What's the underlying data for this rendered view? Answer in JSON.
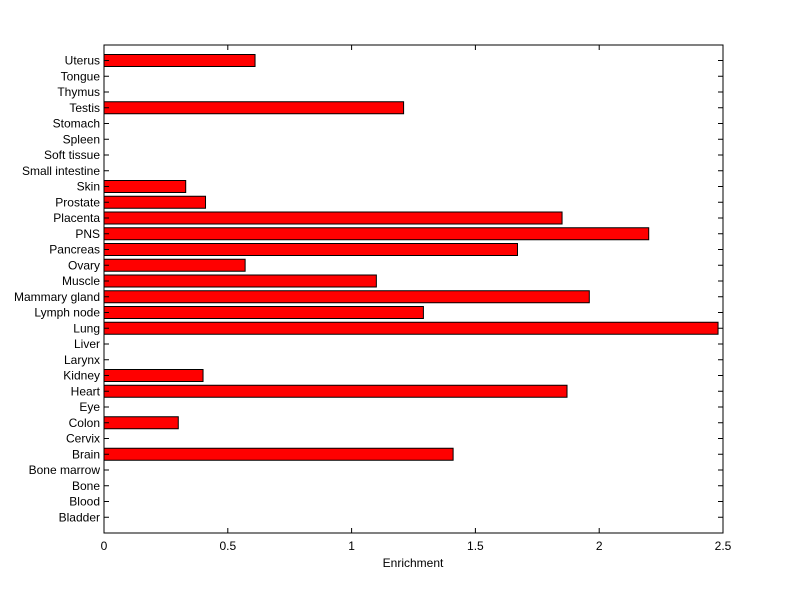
{
  "chart_data": {
    "type": "bar",
    "orientation": "horizontal",
    "title": "",
    "xlabel": "Enrichment",
    "ylabel": "",
    "xlim": [
      0,
      2.5
    ],
    "xticks": [
      "0",
      "0.5",
      "1",
      "1.5",
      "2",
      "2.5"
    ],
    "grid": false,
    "legend": "none",
    "bar_color": "#ff0000",
    "bar_edge_color": "#000000",
    "categories": [
      "Uterus",
      "Tongue",
      "Thymus",
      "Testis",
      "Stomach",
      "Spleen",
      "Soft tissue",
      "Small intestine",
      "Skin",
      "Prostate",
      "Placenta",
      "PNS",
      "Pancreas",
      "Ovary",
      "Muscle",
      "Mammary gland",
      "Lymph node",
      "Lung",
      "Liver",
      "Larynx",
      "Kidney",
      "Heart",
      "Eye",
      "Colon",
      "Cervix",
      "Brain",
      "Bone marrow",
      "Bone",
      "Blood",
      "Bladder"
    ],
    "values": [
      0.61,
      0,
      0,
      1.21,
      0,
      0,
      0,
      0,
      0.33,
      0.41,
      1.85,
      2.2,
      1.67,
      0.57,
      1.1,
      1.96,
      1.29,
      2.48,
      0,
      0,
      0.4,
      1.87,
      0,
      0.3,
      0,
      1.41,
      0,
      0,
      0,
      0
    ]
  }
}
